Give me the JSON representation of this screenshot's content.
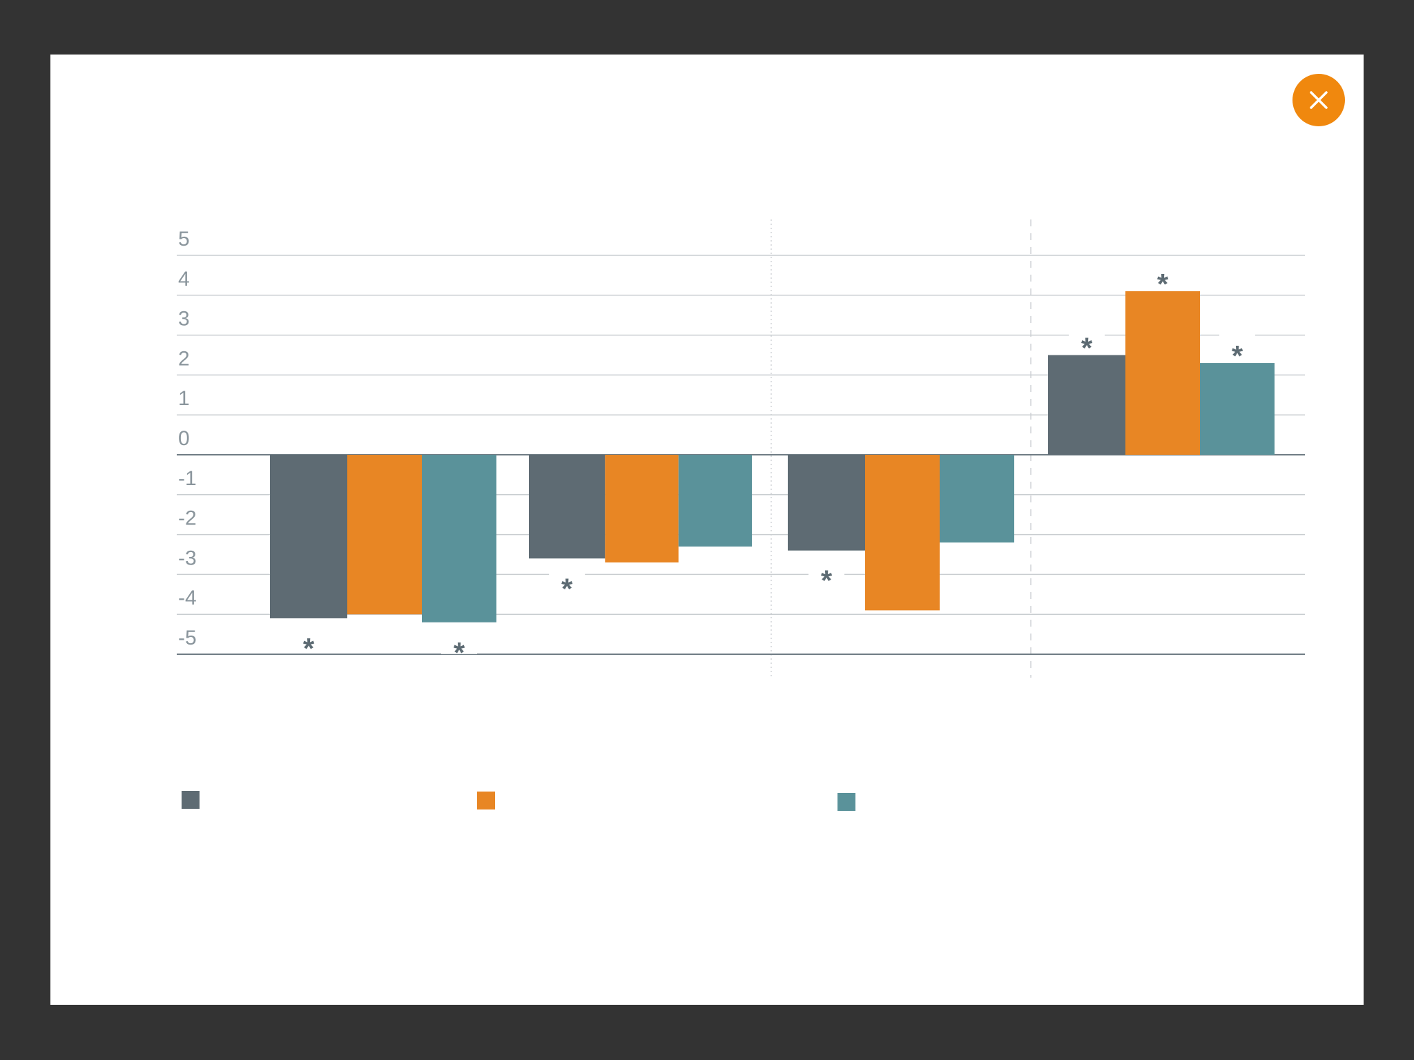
{
  "window": {
    "close_icon": "close-icon",
    "close_color": "#f0880e"
  },
  "chart_data": {
    "type": "bar",
    "title": "",
    "xlabel": "",
    "ylabel": "",
    "ylim": [
      -5,
      5
    ],
    "yticks": [
      "5",
      "4",
      "3",
      "2",
      "1",
      "0",
      "-1",
      "-2",
      "-3",
      "-4",
      "-5"
    ],
    "categories": [
      "",
      "",
      "",
      ""
    ],
    "grid": true,
    "series": [
      {
        "color": "#5e6b73",
        "values": [
          -4.1,
          -2.6,
          -2.4,
          2.5
        ],
        "significant": [
          true,
          true,
          true,
          true
        ]
      },
      {
        "color": "#e88624",
        "values": [
          -4.0,
          -2.7,
          -3.9,
          4.1
        ],
        "significant": [
          false,
          false,
          false,
          true
        ]
      },
      {
        "color": "#5a929a",
        "values": [
          -4.2,
          -2.3,
          -2.2,
          2.3
        ],
        "significant": [
          true,
          false,
          false,
          true
        ]
      }
    ],
    "significance_marker": "*",
    "legend_placement": "bottom"
  }
}
